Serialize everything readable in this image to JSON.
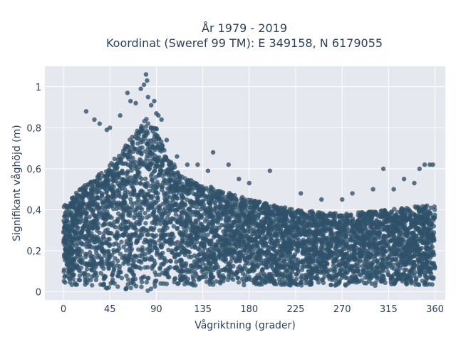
{
  "chart_data": {
    "type": "scatter",
    "title": "År 1979 - 2019",
    "subtitle": "Koordinat (Sweref 99 TM): E 349158, N 6179055",
    "xlabel": "Vågriktning (grader)",
    "ylabel": "Signifikant våghöjd (m)",
    "xlim": [
      -18,
      370
    ],
    "ylim": [
      -0.04,
      1.1
    ],
    "xticks": [
      0,
      45,
      90,
      135,
      180,
      225,
      270,
      315,
      360
    ],
    "yticks": [
      0,
      0.2,
      0.4,
      0.6,
      0.8,
      1
    ],
    "ytick_labels": [
      "0",
      "0,2",
      "0,4",
      "0,6",
      "0,8",
      "1"
    ],
    "grid": true,
    "marker_color": "#2f5169",
    "background": "#e5e8ef",
    "envelope": {
      "direction_deg": [
        0,
        20,
        40,
        55,
        70,
        80,
        90,
        100,
        120,
        150,
        180,
        225,
        270,
        315,
        345,
        360
      ],
      "upper_height_m": [
        0.42,
        0.52,
        0.6,
        0.68,
        0.78,
        0.85,
        0.8,
        0.66,
        0.55,
        0.5,
        0.45,
        0.4,
        0.38,
        0.4,
        0.42,
        0.42
      ]
    },
    "outliers": {
      "x": [
        22,
        30,
        35,
        42,
        45,
        55,
        62,
        65,
        70,
        75,
        78,
        80,
        81,
        82,
        85,
        88,
        90,
        92,
        95,
        100,
        110,
        120,
        130,
        140,
        145,
        160,
        170,
        180,
        200,
        230,
        250,
        270,
        280,
        300,
        310,
        320,
        330,
        340,
        345,
        350,
        355,
        358
      ],
      "y": [
        0.88,
        0.84,
        0.82,
        0.79,
        0.8,
        0.86,
        0.97,
        0.93,
        0.92,
        0.99,
        1.01,
        1.06,
        1.03,
        0.95,
        0.91,
        0.93,
        0.87,
        0.86,
        0.84,
        0.74,
        0.66,
        0.62,
        0.62,
        0.59,
        0.68,
        0.62,
        0.55,
        0.53,
        0.59,
        0.48,
        0.45,
        0.45,
        0.48,
        0.5,
        0.6,
        0.5,
        0.55,
        0.53,
        0.6,
        0.62,
        0.62,
        0.62
      ]
    }
  }
}
